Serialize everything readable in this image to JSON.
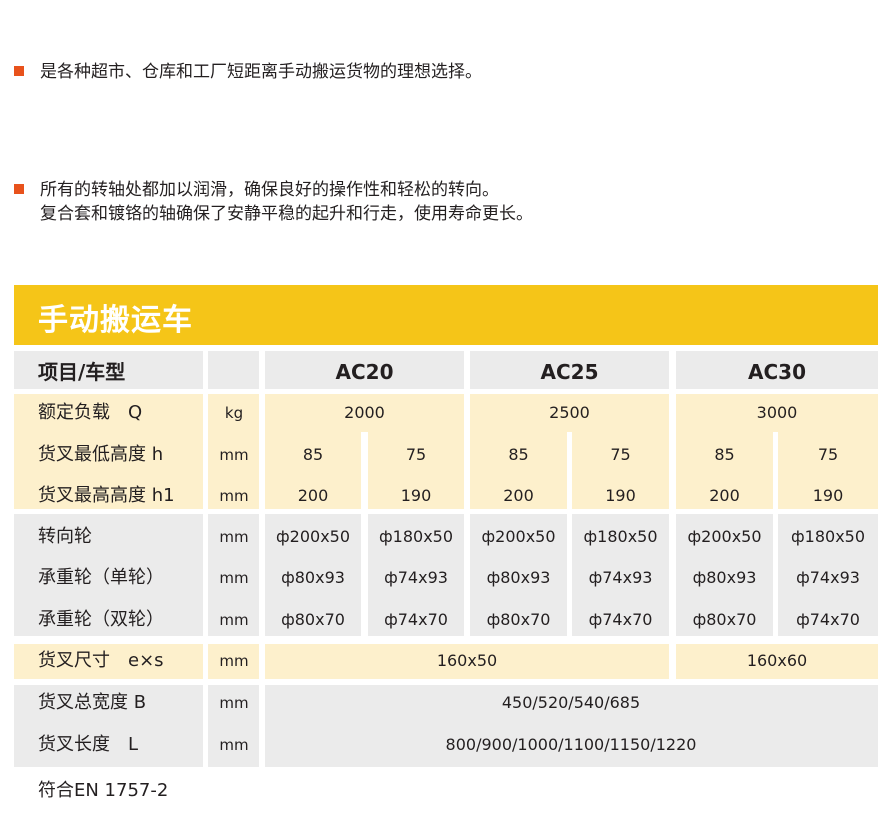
{
  "bullets": [
    {
      "lines": [
        "是各种超市、仓库和工厂短距离手动搬运货物的理想选择。"
      ]
    },
    {
      "lines": [
        "所有的转轴处都加以润滑，确保良好的操作性和轻松的转向。",
        "复合套和镀铬的轴确保了安静平稳的起升和行走，使用寿命更长。"
      ]
    }
  ],
  "colors": {
    "bullet": "#e8521c",
    "title_bar": "#f5c518",
    "row_gray": "#ebebeb",
    "row_yellow": "#fdf0cc"
  },
  "table": {
    "title": "手动搬运车",
    "header": {
      "label": "项目/车型",
      "models": [
        "AC20",
        "AC25",
        "AC30"
      ]
    },
    "rows": [
      {
        "label": "额定负载　Q",
        "unit": "kg",
        "values": [
          "2000",
          "2500",
          "3000"
        ]
      },
      {
        "label": "货叉最低高度 h",
        "unit": "mm",
        "values": [
          "85",
          "75",
          "85",
          "75",
          "85",
          "75"
        ]
      },
      {
        "label": "货叉最高高度 h1",
        "unit": "mm",
        "values": [
          "200",
          "190",
          "200",
          "190",
          "200",
          "190"
        ]
      },
      {
        "label": "转向轮",
        "unit": "mm",
        "values": [
          "ф200x50",
          "ф180x50",
          "ф200x50",
          "ф180x50",
          "ф200x50",
          "ф180x50"
        ]
      },
      {
        "label": "承重轮（单轮）",
        "unit": "mm",
        "values": [
          "ф80x93",
          "ф74x93",
          "ф80x93",
          "ф74x93",
          "ф80x93",
          "ф74x93"
        ]
      },
      {
        "label": "承重轮（双轮）",
        "unit": "mm",
        "values": [
          "ф80x70",
          "ф74x70",
          "ф80x70",
          "ф74x70",
          "ф80x70",
          "ф74x70"
        ]
      },
      {
        "label": "货叉尺寸　e×s",
        "unit": "mm",
        "values": [
          "160x50",
          "160x60"
        ]
      },
      {
        "label": "货叉总宽度 B",
        "unit": "mm",
        "values": [
          "450/520/540/685"
        ]
      },
      {
        "label": "货叉长度　L",
        "unit": "mm",
        "values": [
          "800/900/1000/1100/1150/1220"
        ]
      }
    ],
    "footer": "符合EN 1757-2"
  }
}
